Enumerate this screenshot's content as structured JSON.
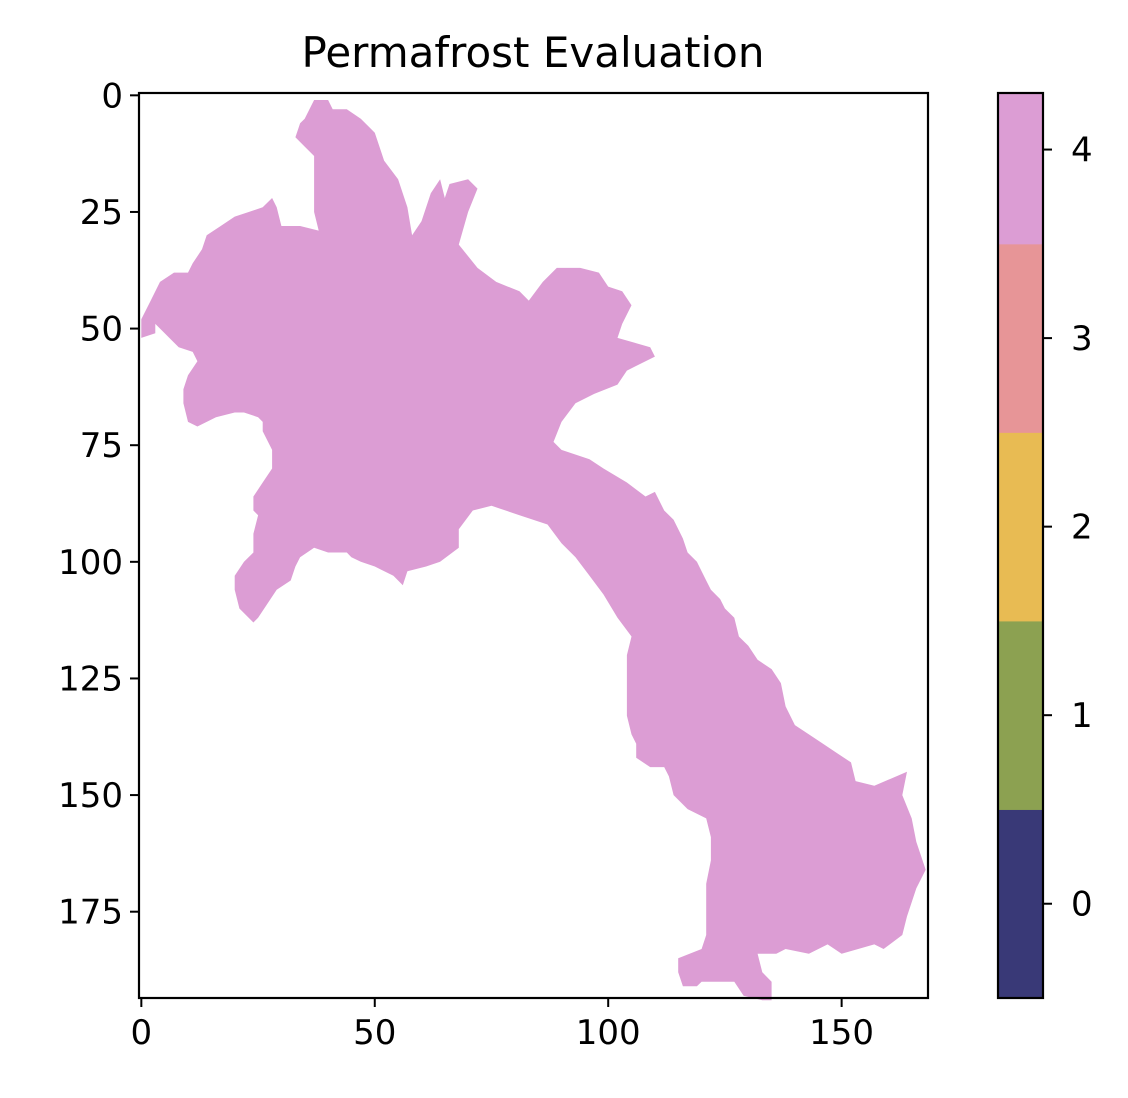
{
  "chart_data": {
    "type": "heatmap",
    "title": "Permafrost Evaluation",
    "xlabel": "",
    "ylabel": "",
    "grid": false,
    "image_shape": [
      194,
      169
    ],
    "xlim": [
      -0.5,
      168.5
    ],
    "ylim": [
      193.5,
      -0.5
    ],
    "x_ticks": [
      0,
      50,
      100,
      150
    ],
    "y_ticks": [
      0,
      25,
      50,
      75,
      100,
      125,
      150,
      175
    ],
    "colorbar": {
      "ticks": [
        0,
        1,
        2,
        3,
        4
      ],
      "range": [
        -0.5,
        4.3
      ],
      "colors": [
        "#393977",
        "#8ca151",
        "#e8bb53",
        "#e79597",
        "#dc9dd4"
      ],
      "bounds": [
        -0.5,
        0.5,
        1.5,
        2.5,
        3.5,
        4.3
      ]
    },
    "region": {
      "value": 4,
      "color": "#dc9dd4",
      "outline": [
        [
          37,
          1
        ],
        [
          40,
          1
        ],
        [
          41,
          3
        ],
        [
          44,
          3
        ],
        [
          47,
          5
        ],
        [
          50,
          8
        ],
        [
          52,
          14
        ],
        [
          55,
          18
        ],
        [
          57,
          24
        ],
        [
          58,
          30
        ],
        [
          60,
          27
        ],
        [
          62,
          21
        ],
        [
          64,
          18
        ],
        [
          65,
          22
        ],
        [
          66,
          19
        ],
        [
          70,
          18
        ],
        [
          72,
          20
        ],
        [
          70,
          25
        ],
        [
          68,
          32
        ],
        [
          72,
          37
        ],
        [
          76,
          40
        ],
        [
          81,
          42
        ],
        [
          83,
          44
        ],
        [
          86,
          40
        ],
        [
          89,
          37
        ],
        [
          94,
          37
        ],
        [
          98,
          38
        ],
        [
          100,
          41
        ],
        [
          103,
          42
        ],
        [
          105,
          45
        ],
        [
          103,
          49
        ],
        [
          102,
          52
        ],
        [
          109,
          54
        ],
        [
          110,
          56
        ],
        [
          104,
          59
        ],
        [
          102,
          62
        ],
        [
          97,
          64
        ],
        [
          93,
          66
        ],
        [
          90,
          70
        ],
        [
          88,
          75
        ],
        [
          87,
          73
        ],
        [
          90,
          76
        ],
        [
          96,
          78
        ],
        [
          99,
          80
        ],
        [
          104,
          83
        ],
        [
          108,
          86
        ],
        [
          110,
          85
        ],
        [
          112,
          89
        ],
        [
          114,
          91
        ],
        [
          116,
          95
        ],
        [
          117,
          98
        ],
        [
          119,
          100
        ],
        [
          121,
          104
        ],
        [
          122,
          106
        ],
        [
          124,
          108
        ],
        [
          125,
          110
        ],
        [
          127,
          112
        ],
        [
          128,
          116
        ],
        [
          130,
          118
        ],
        [
          132,
          121
        ],
        [
          135,
          123
        ],
        [
          137,
          126
        ],
        [
          138,
          131
        ],
        [
          140,
          135
        ],
        [
          143,
          137
        ],
        [
          146,
          139
        ],
        [
          149,
          141
        ],
        [
          152,
          143
        ],
        [
          153,
          147
        ],
        [
          157,
          148
        ],
        [
          164,
          145
        ],
        [
          163,
          150
        ],
        [
          165,
          155
        ],
        [
          166,
          160
        ],
        [
          168,
          166
        ],
        [
          166,
          170
        ],
        [
          164,
          176
        ],
        [
          163,
          180
        ],
        [
          159,
          183
        ],
        [
          157,
          182
        ],
        [
          150,
          184
        ],
        [
          147,
          182
        ],
        [
          143,
          184
        ],
        [
          138,
          183
        ],
        [
          136,
          184
        ],
        [
          132,
          184
        ],
        [
          133,
          188
        ],
        [
          135,
          190
        ],
        [
          135,
          194
        ],
        [
          133,
          194
        ],
        [
          129,
          193
        ],
        [
          127,
          190
        ],
        [
          123,
          190
        ],
        [
          120,
          190
        ],
        [
          119,
          191
        ],
        [
          116,
          191
        ],
        [
          115,
          188
        ],
        [
          115,
          185
        ],
        [
          120,
          183
        ],
        [
          121,
          180
        ],
        [
          121,
          175
        ],
        [
          121,
          169
        ],
        [
          122,
          164
        ],
        [
          122,
          159
        ],
        [
          121,
          155
        ],
        [
          117,
          153
        ],
        [
          114,
          150
        ],
        [
          113,
          146
        ],
        [
          112,
          144
        ],
        [
          109,
          144
        ],
        [
          106,
          142
        ],
        [
          106,
          139
        ],
        [
          105,
          137
        ],
        [
          104,
          133
        ],
        [
          104,
          128
        ],
        [
          104,
          124
        ],
        [
          104,
          120
        ],
        [
          105,
          116
        ],
        [
          102,
          112
        ],
        [
          99,
          107
        ],
        [
          96,
          103
        ],
        [
          93,
          99
        ],
        [
          90,
          96
        ],
        [
          87,
          92
        ],
        [
          81,
          90
        ],
        [
          75,
          88
        ],
        [
          71,
          89
        ],
        [
          68,
          93
        ],
        [
          68,
          97
        ],
        [
          64,
          100
        ],
        [
          61,
          101
        ],
        [
          57,
          102
        ],
        [
          56,
          105
        ],
        [
          55,
          104
        ],
        [
          54,
          103
        ],
        [
          50,
          101
        ],
        [
          47,
          100
        ],
        [
          45,
          99
        ],
        [
          44,
          98
        ],
        [
          40,
          98
        ],
        [
          37,
          97
        ],
        [
          34,
          99
        ],
        [
          33,
          101
        ],
        [
          32,
          104
        ],
        [
          29,
          106
        ],
        [
          27,
          109
        ],
        [
          25,
          112
        ],
        [
          24,
          113
        ],
        [
          21,
          110
        ],
        [
          20,
          106
        ],
        [
          20,
          103
        ],
        [
          22,
          100
        ],
        [
          24,
          98
        ],
        [
          24,
          94
        ],
        [
          25,
          90
        ],
        [
          24,
          89
        ],
        [
          24,
          86
        ],
        [
          26,
          83
        ],
        [
          28,
          80
        ],
        [
          28,
          76
        ],
        [
          26,
          72
        ],
        [
          26,
          70
        ],
        [
          25,
          69
        ],
        [
          22,
          68
        ],
        [
          20,
          68
        ],
        [
          16,
          69
        ],
        [
          12,
          71
        ],
        [
          10,
          70
        ],
        [
          9,
          66
        ],
        [
          9,
          63
        ],
        [
          10,
          60
        ],
        [
          12,
          57
        ],
        [
          11,
          55
        ],
        [
          8,
          54
        ],
        [
          6,
          52
        ],
        [
          5,
          51
        ],
        [
          3,
          49
        ],
        [
          3,
          51
        ],
        [
          0,
          52
        ],
        [
          0,
          48
        ],
        [
          2,
          44
        ],
        [
          4,
          40
        ],
        [
          7,
          38
        ],
        [
          10,
          38
        ],
        [
          11,
          36
        ],
        [
          13,
          33
        ],
        [
          14,
          30
        ],
        [
          17,
          28
        ],
        [
          20,
          26
        ],
        [
          23,
          25
        ],
        [
          26,
          24
        ],
        [
          28,
          22
        ],
        [
          29,
          24
        ],
        [
          30,
          28
        ],
        [
          34,
          28
        ],
        [
          38,
          29
        ],
        [
          37,
          25
        ],
        [
          37,
          20
        ],
        [
          37,
          16
        ],
        [
          37,
          13
        ],
        [
          35,
          11
        ],
        [
          33,
          9
        ],
        [
          34,
          6
        ],
        [
          35,
          5
        ]
      ]
    }
  }
}
